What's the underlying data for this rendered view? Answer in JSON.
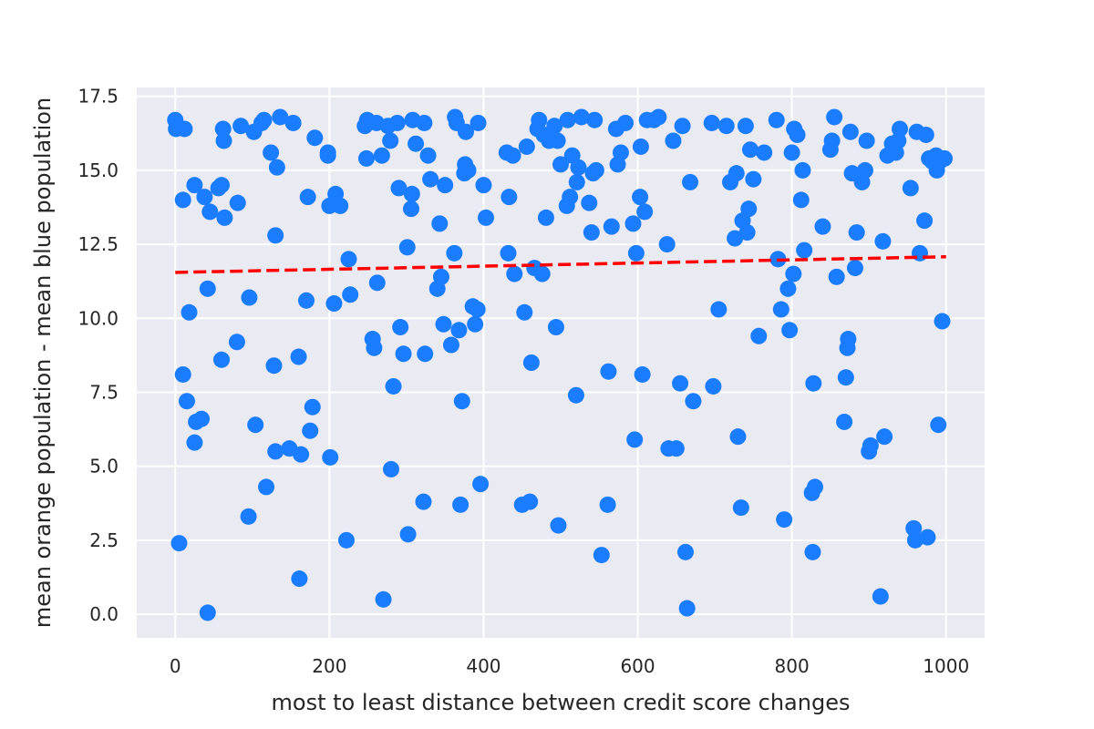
{
  "chart_data": {
    "type": "scatter",
    "title": "",
    "xlabel": "most to least distance between credit score changes",
    "ylabel": "mean orange population - mean blue population",
    "xlim": [
      -50,
      1050
    ],
    "ylim": [
      -0.8,
      17.8
    ],
    "xticks": [
      0,
      200,
      400,
      600,
      800,
      1000
    ],
    "xtick_labels": [
      "0",
      "200",
      "400",
      "600",
      "800",
      "1000"
    ],
    "yticks": [
      0.0,
      2.5,
      5.0,
      7.5,
      10.0,
      12.5,
      15.0,
      17.5
    ],
    "ytick_labels": [
      "0.0",
      "2.5",
      "5.0",
      "7.5",
      "10.0",
      "12.5",
      "15.0",
      "17.5"
    ],
    "grid": true,
    "colors": {
      "background": "#eaeaf2",
      "grid": "#ffffff",
      "points": "#1a7cff",
      "trend": "#ff0000"
    },
    "trendline": {
      "x": [
        0,
        1000
      ],
      "y": [
        11.55,
        12.08
      ],
      "style": "dashed"
    },
    "points": [
      [
        0,
        16.7
      ],
      [
        1,
        16.4
      ],
      [
        5,
        2.4
      ],
      [
        10,
        14.0
      ],
      [
        10,
        8.1
      ],
      [
        12,
        16.4
      ],
      [
        15,
        7.2
      ],
      [
        18,
        10.2
      ],
      [
        25,
        14.5
      ],
      [
        25,
        5.8
      ],
      [
        27,
        6.5
      ],
      [
        34,
        6.6
      ],
      [
        38,
        14.1
      ],
      [
        42,
        11.0
      ],
      [
        42,
        0.05
      ],
      [
        45,
        13.6
      ],
      [
        56,
        14.4
      ],
      [
        60,
        14.5
      ],
      [
        60,
        8.6
      ],
      [
        62,
        16.4
      ],
      [
        63,
        16.0
      ],
      [
        64,
        13.4
      ],
      [
        80,
        9.2
      ],
      [
        81,
        13.9
      ],
      [
        85,
        16.5
      ],
      [
        95,
        3.3
      ],
      [
        96,
        10.7
      ],
      [
        102,
        16.3
      ],
      [
        104,
        6.4
      ],
      [
        112,
        16.6
      ],
      [
        115,
        16.7
      ],
      [
        118,
        4.3
      ],
      [
        124,
        15.6
      ],
      [
        128,
        8.4
      ],
      [
        130,
        12.8
      ],
      [
        130,
        5.5
      ],
      [
        132,
        15.1
      ],
      [
        136,
        16.8
      ],
      [
        148,
        5.6
      ],
      [
        153,
        16.6
      ],
      [
        160,
        8.7
      ],
      [
        161,
        1.2
      ],
      [
        163,
        5.4
      ],
      [
        170,
        10.6
      ],
      [
        172,
        14.1
      ],
      [
        175,
        6.2
      ],
      [
        178,
        7.0
      ],
      [
        181,
        16.1
      ],
      [
        198,
        15.5
      ],
      [
        198,
        15.6
      ],
      [
        200,
        13.8
      ],
      [
        201,
        5.3
      ],
      [
        206,
        10.5
      ],
      [
        208,
        14.2
      ],
      [
        214,
        13.8
      ],
      [
        222,
        2.5
      ],
      [
        225,
        12.0
      ],
      [
        227,
        10.8
      ],
      [
        246,
        16.5
      ],
      [
        248,
        15.4
      ],
      [
        249,
        16.7
      ],
      [
        256,
        9.3
      ],
      [
        258,
        9.0
      ],
      [
        261,
        16.6
      ],
      [
        262,
        11.2
      ],
      [
        268,
        15.5
      ],
      [
        270,
        0.5
      ],
      [
        276,
        16.5
      ],
      [
        279,
        16.0
      ],
      [
        280,
        4.9
      ],
      [
        283,
        7.7
      ],
      [
        288,
        16.6
      ],
      [
        290,
        14.4
      ],
      [
        292,
        9.7
      ],
      [
        296,
        8.8
      ],
      [
        301,
        12.4
      ],
      [
        302,
        2.7
      ],
      [
        306,
        13.7
      ],
      [
        307,
        14.2
      ],
      [
        308,
        16.7
      ],
      [
        312,
        15.9
      ],
      [
        322,
        3.8
      ],
      [
        323,
        16.6
      ],
      [
        324,
        8.8
      ],
      [
        328,
        15.5
      ],
      [
        331,
        14.7
      ],
      [
        340,
        11.0
      ],
      [
        343,
        13.2
      ],
      [
        345,
        11.4
      ],
      [
        348,
        9.8
      ],
      [
        350,
        14.5
      ],
      [
        358,
        9.1
      ],
      [
        362,
        12.2
      ],
      [
        363,
        16.8
      ],
      [
        365,
        16.6
      ],
      [
        368,
        9.6
      ],
      [
        370,
        3.7
      ],
      [
        372,
        7.2
      ],
      [
        375,
        14.9
      ],
      [
        376,
        15.2
      ],
      [
        377,
        16.3
      ],
      [
        380,
        15.0
      ],
      [
        386,
        10.4
      ],
      [
        389,
        9.8
      ],
      [
        392,
        10.3
      ],
      [
        393,
        16.6
      ],
      [
        396,
        4.4
      ],
      [
        400,
        14.5
      ],
      [
        403,
        13.4
      ],
      [
        430,
        15.6
      ],
      [
        432,
        12.2
      ],
      [
        433,
        14.1
      ],
      [
        438,
        15.5
      ],
      [
        440,
        11.5
      ],
      [
        450,
        3.7
      ],
      [
        453,
        10.2
      ],
      [
        456,
        15.8
      ],
      [
        460,
        3.8
      ],
      [
        462,
        8.5
      ],
      [
        466,
        11.7
      ],
      [
        470,
        16.4
      ],
      [
        472,
        16.7
      ],
      [
        476,
        11.5
      ],
      [
        478,
        16.2
      ],
      [
        481,
        13.4
      ],
      [
        485,
        16.0
      ],
      [
        492,
        16.5
      ],
      [
        494,
        9.7
      ],
      [
        496,
        16.0
      ],
      [
        497,
        3.0
      ],
      [
        500,
        15.2
      ],
      [
        508,
        13.8
      ],
      [
        509,
        16.7
      ],
      [
        512,
        14.1
      ],
      [
        515,
        15.5
      ],
      [
        520,
        7.4
      ],
      [
        521,
        14.6
      ],
      [
        523,
        15.1
      ],
      [
        527,
        16.8
      ],
      [
        537,
        13.9
      ],
      [
        540,
        12.9
      ],
      [
        542,
        14.9
      ],
      [
        544,
        16.7
      ],
      [
        546,
        15.0
      ],
      [
        553,
        2.0
      ],
      [
        561,
        3.7
      ],
      [
        562,
        8.2
      ],
      [
        566,
        13.1
      ],
      [
        572,
        16.4
      ],
      [
        574,
        15.2
      ],
      [
        578,
        15.6
      ],
      [
        584,
        16.6
      ],
      [
        594,
        13.2
      ],
      [
        596,
        5.9
      ],
      [
        598,
        12.2
      ],
      [
        603,
        14.1
      ],
      [
        604,
        15.8
      ],
      [
        606,
        8.1
      ],
      [
        609,
        13.6
      ],
      [
        612,
        16.7
      ],
      [
        621,
        16.7
      ],
      [
        627,
        16.8
      ],
      [
        638,
        12.5
      ],
      [
        640,
        5.6
      ],
      [
        646,
        16.0
      ],
      [
        650,
        5.6
      ],
      [
        655,
        7.8
      ],
      [
        658,
        16.5
      ],
      [
        662,
        2.1
      ],
      [
        664,
        0.2
      ],
      [
        668,
        14.6
      ],
      [
        672,
        7.2
      ],
      [
        696,
        16.6
      ],
      [
        698,
        7.7
      ],
      [
        705,
        10.3
      ],
      [
        715,
        16.5
      ],
      [
        720,
        14.6
      ],
      [
        726,
        12.7
      ],
      [
        728,
        14.9
      ],
      [
        730,
        6.0
      ],
      [
        734,
        3.6
      ],
      [
        736,
        13.3
      ],
      [
        740,
        16.5
      ],
      [
        742,
        12.9
      ],
      [
        744,
        13.7
      ],
      [
        746,
        15.7
      ],
      [
        750,
        14.7
      ],
      [
        757,
        9.4
      ],
      [
        764,
        15.6
      ],
      [
        780,
        16.7
      ],
      [
        782,
        12.0
      ],
      [
        786,
        10.3
      ],
      [
        790,
        3.2
      ],
      [
        795,
        11.0
      ],
      [
        797,
        9.6
      ],
      [
        800,
        15.6
      ],
      [
        802,
        11.5
      ],
      [
        803,
        16.4
      ],
      [
        807,
        16.2
      ],
      [
        812,
        14.0
      ],
      [
        814,
        15.0
      ],
      [
        816,
        12.3
      ],
      [
        826,
        4.1
      ],
      [
        827,
        2.1
      ],
      [
        828,
        7.8
      ],
      [
        830,
        4.3
      ],
      [
        840,
        13.1
      ],
      [
        850,
        15.7
      ],
      [
        852,
        16.0
      ],
      [
        855,
        16.8
      ],
      [
        858,
        11.4
      ],
      [
        868,
        6.5
      ],
      [
        870,
        8.0
      ],
      [
        872,
        9.0
      ],
      [
        873,
        9.3
      ],
      [
        876,
        16.3
      ],
      [
        878,
        14.9
      ],
      [
        882,
        11.7
      ],
      [
        884,
        12.9
      ],
      [
        889,
        14.8
      ],
      [
        891,
        14.6
      ],
      [
        895,
        15.0
      ],
      [
        897,
        16.0
      ],
      [
        900,
        5.5
      ],
      [
        902,
        5.7
      ],
      [
        915,
        0.6
      ],
      [
        918,
        12.6
      ],
      [
        920,
        6.0
      ],
      [
        924,
        15.5
      ],
      [
        930,
        15.9
      ],
      [
        935,
        15.6
      ],
      [
        938,
        16.0
      ],
      [
        940,
        16.4
      ],
      [
        954,
        14.4
      ],
      [
        958,
        2.9
      ],
      [
        960,
        2.5
      ],
      [
        962,
        16.3
      ],
      [
        966,
        12.2
      ],
      [
        972,
        13.3
      ],
      [
        974,
        16.2
      ],
      [
        976,
        2.6
      ],
      [
        978,
        15.4
      ],
      [
        982,
        15.3
      ],
      [
        987,
        15.5
      ],
      [
        988,
        15.0
      ],
      [
        990,
        6.4
      ],
      [
        992,
        15.3
      ],
      [
        995,
        9.9
      ],
      [
        998,
        15.4
      ]
    ]
  }
}
